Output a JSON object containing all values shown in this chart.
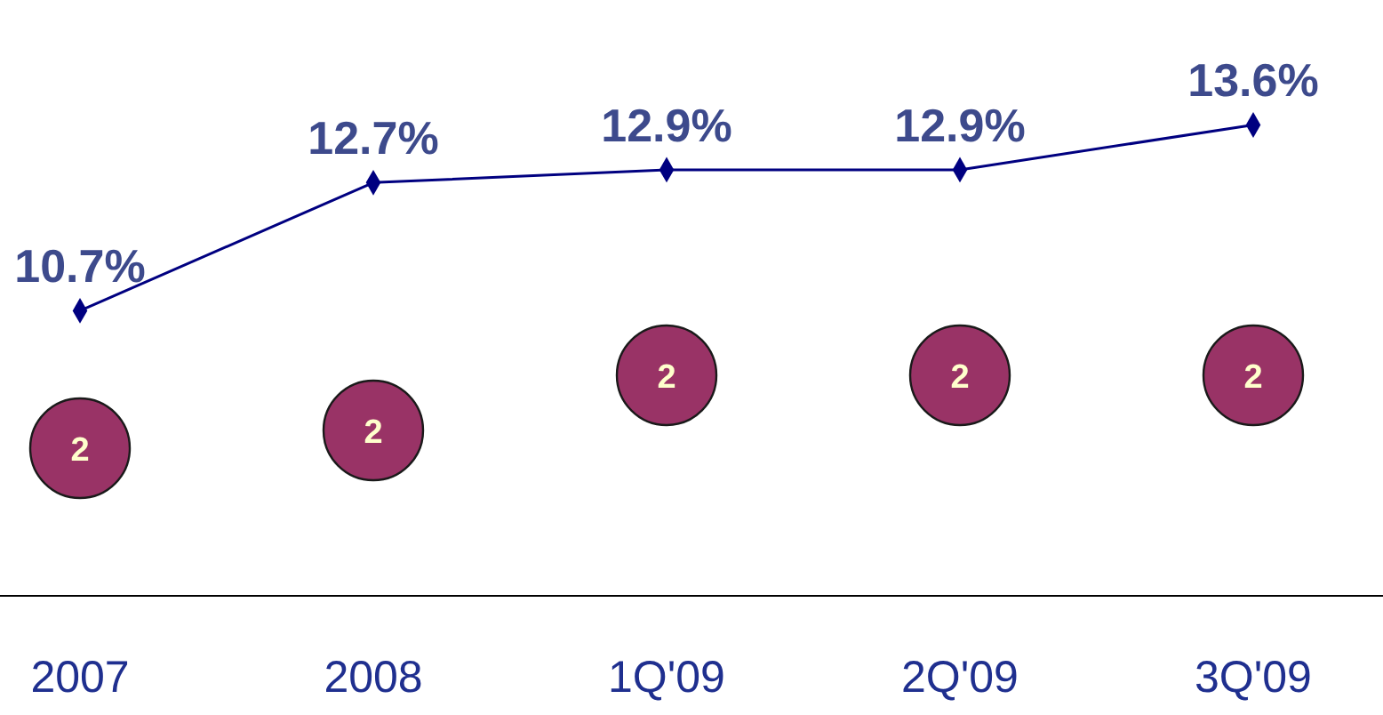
{
  "chart_data": {
    "type": "line",
    "categories": [
      "2007",
      "2008",
      "1Q'09",
      "2Q'09",
      "3Q'09"
    ],
    "series": [
      {
        "color": "#000080",
        "values": [
          10.7,
          12.7,
          12.9,
          12.9,
          13.6
        ],
        "value_labels": [
          "10.7%",
          "12.7%",
          "12.9%",
          "12.9%",
          "13.6%"
        ]
      }
    ],
    "ylim": [
      6.25,
      15.55
    ],
    "marker": "diamond",
    "line_style": "solid",
    "tick_labels": "x",
    "annotations": [
      "2",
      "2",
      "2",
      "2",
      "2"
    ]
  }
}
